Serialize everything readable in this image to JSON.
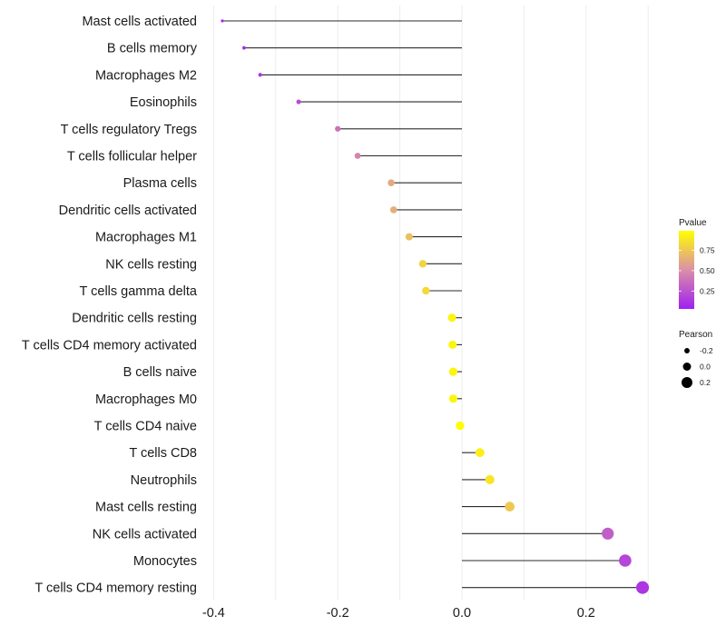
{
  "chart_data": {
    "type": "lollipop",
    "title": "",
    "xlabel": "",
    "ylabel": "",
    "xlim": [
      -0.4,
      0.3
    ],
    "x_ticks": [
      -0.4,
      -0.2,
      0.0,
      0.2
    ],
    "x_tick_labels": [
      "-0.4",
      "-0.2",
      "0.0",
      "0.2"
    ],
    "grid": true,
    "categories": [
      "Mast cells activated",
      "B cells memory",
      "Macrophages M2",
      "Eosinophils",
      "T cells regulatory  Tregs ",
      "T cells follicular helper",
      "Plasma cells",
      "Dendritic cells activated",
      "Macrophages M1",
      "NK cells resting",
      "T cells gamma delta",
      "Dendritic cells resting",
      "T cells CD4 memory activated",
      "B cells naive",
      "Macrophages M0",
      "T cells CD4 naive",
      "T cells CD8",
      "Neutrophils",
      "Mast cells resting",
      "NK cells activated",
      "Monocytes",
      "T cells CD4 memory resting"
    ],
    "pearson": [
      -0.386,
      -0.351,
      -0.325,
      -0.263,
      -0.2,
      -0.168,
      -0.114,
      -0.11,
      -0.085,
      -0.063,
      -0.058,
      -0.016,
      -0.015,
      -0.014,
      -0.014,
      -0.003,
      0.029,
      0.045,
      0.077,
      0.235,
      0.263,
      0.291
    ],
    "pvalue": [
      0.03,
      0.06,
      0.09,
      0.2,
      0.36,
      0.45,
      0.62,
      0.64,
      0.72,
      0.81,
      0.83,
      0.95,
      0.96,
      0.96,
      0.96,
      0.99,
      0.93,
      0.89,
      0.76,
      0.28,
      0.17,
      0.1
    ],
    "color_scale": {
      "title": "Pvalue",
      "low_color": "#A020F0",
      "high_color": "#FFFF00",
      "range": [
        0.0,
        1.0
      ],
      "ticks": [
        0.25,
        0.5,
        0.75
      ],
      "tick_labels": [
        "0.25",
        "0.50",
        "0.75"
      ]
    },
    "size_scale": {
      "title": "Pearson",
      "range": [
        -0.4,
        0.3
      ],
      "ticks": [
        -0.2,
        0.0,
        0.2
      ],
      "tick_labels": [
        "-0.2",
        "0.0",
        "0.2"
      ]
    },
    "legend_position": "right"
  }
}
